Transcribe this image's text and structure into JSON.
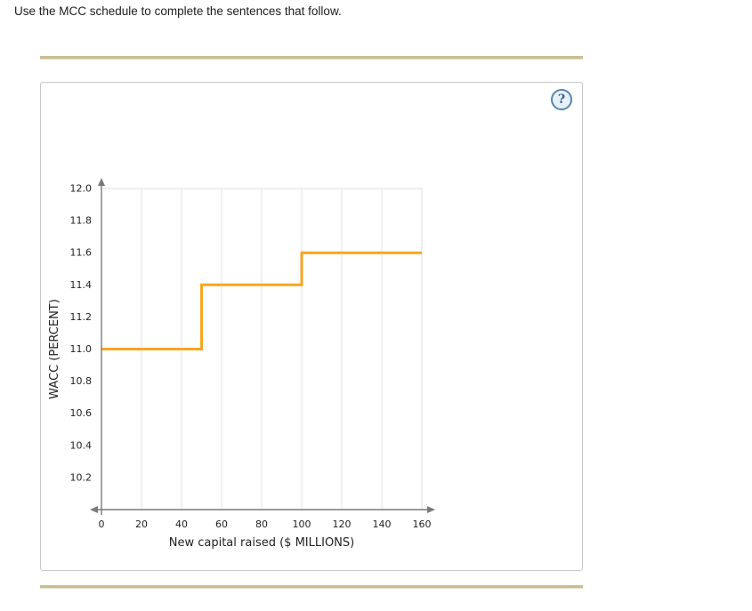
{
  "page": {
    "instruction": "Use the MCC schedule to complete the sentences that follow."
  },
  "panel": {
    "help_label": "?"
  },
  "chart_data": {
    "type": "line",
    "subtype": "step",
    "title": "",
    "xlabel": "New capital raised ($ MILLIONS)",
    "ylabel": "WACC (PERCENT)",
    "xlim": [
      0,
      160
    ],
    "ylim": [
      10.0,
      12.0
    ],
    "x_ticks": [
      0,
      20,
      40,
      60,
      80,
      100,
      120,
      140,
      160
    ],
    "y_ticks": [
      10.2,
      10.4,
      10.6,
      10.8,
      11.0,
      11.2,
      11.4,
      11.6,
      11.8,
      12.0
    ],
    "grid": "vertical",
    "legend": "none",
    "axis_color": "#7a7a7a",
    "grid_color": "#e3e3e3",
    "series": [
      {
        "name": "MCC schedule",
        "color": "#F5A623",
        "points": [
          [
            0,
            11.0
          ],
          [
            50,
            11.0
          ],
          [
            50,
            11.4
          ],
          [
            100,
            11.4
          ],
          [
            100,
            11.6
          ],
          [
            160,
            11.6
          ]
        ]
      }
    ],
    "breakpoints_millions": [
      50,
      100
    ],
    "wacc_levels_percent": [
      11.0,
      11.4,
      11.6
    ]
  }
}
